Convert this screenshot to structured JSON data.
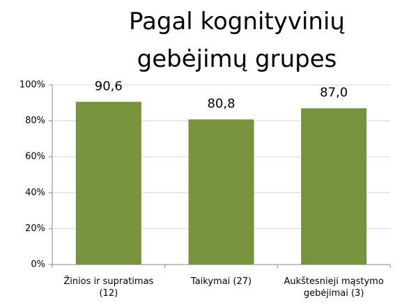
{
  "chart_data": {
    "type": "bar",
    "title": "Pagal kognityvinių\ngebėjimų grupes",
    "categories": [
      "Žinios ir supratimas\n(12)",
      "Taikymai (27)",
      "Aukštesnieji mąstymo\ngebėjimai (3)"
    ],
    "values": [
      90.6,
      80.8,
      87.0
    ],
    "value_labels": [
      "90,6",
      "80,8",
      "87,0"
    ],
    "color": "#77933c",
    "ylim": [
      0,
      100
    ],
    "yticks": [
      {
        "value": 0,
        "label": "0%"
      },
      {
        "value": 20,
        "label": "20%"
      },
      {
        "value": 40,
        "label": "40%"
      },
      {
        "value": 60,
        "label": "60%"
      },
      {
        "value": 80,
        "label": "80%"
      },
      {
        "value": 100,
        "label": "100%"
      }
    ],
    "grid": true
  }
}
